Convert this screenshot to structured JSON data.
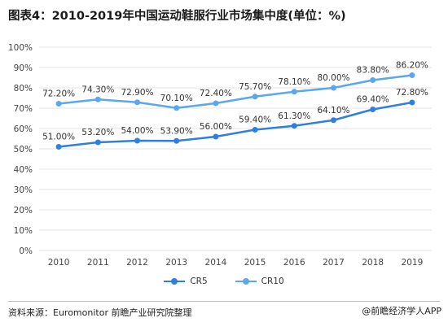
{
  "title": "图表4：2010-2019年中国运动鞋服行业市场集中度(单位：%)",
  "source": "资料来源：Euromonitor   前瞻产业研究院整理",
  "logo_text": "@前瞻经济学人APP",
  "colors": {
    "cr5": "#2f7fe0",
    "cr10": "#5ba7ef",
    "grid": "#e3e3e3",
    "axis_text": "#444444"
  },
  "chart_data": {
    "type": "line",
    "title": "图表4：2010-2019年中国运动鞋服行业市场集中度(单位：%)",
    "xlabel": "",
    "ylabel": "",
    "categories": [
      "2010",
      "2011",
      "2012",
      "2013",
      "2014",
      "2015",
      "2016",
      "2017",
      "2018",
      "2019"
    ],
    "ylim": [
      0,
      100
    ],
    "yticks": [
      "0%",
      "10%",
      "20%",
      "30%",
      "40%",
      "50%",
      "60%",
      "70%",
      "80%",
      "90%",
      "100%"
    ],
    "grid": true,
    "legend_position": "bottom",
    "series": [
      {
        "name": "CR5",
        "values": [
          51.0,
          53.2,
          54.0,
          53.9,
          56.0,
          59.4,
          61.3,
          64.1,
          69.4,
          72.8
        ],
        "labels": [
          "51.00%",
          "53.20%",
          "54.00%",
          "53.90%",
          "56.00%",
          "59.40%",
          "61.30%",
          "64.10%",
          "69.40%",
          "72.80%"
        ]
      },
      {
        "name": "CR10",
        "values": [
          72.2,
          74.3,
          72.9,
          70.1,
          72.4,
          75.7,
          78.1,
          80.0,
          83.8,
          86.2
        ],
        "labels": [
          "72.20%",
          "74.30%",
          "72.90%",
          "70.10%",
          "72.40%",
          "75.70%",
          "78.10%",
          "80.00%",
          "83.80%",
          "86.20%"
        ]
      }
    ]
  }
}
